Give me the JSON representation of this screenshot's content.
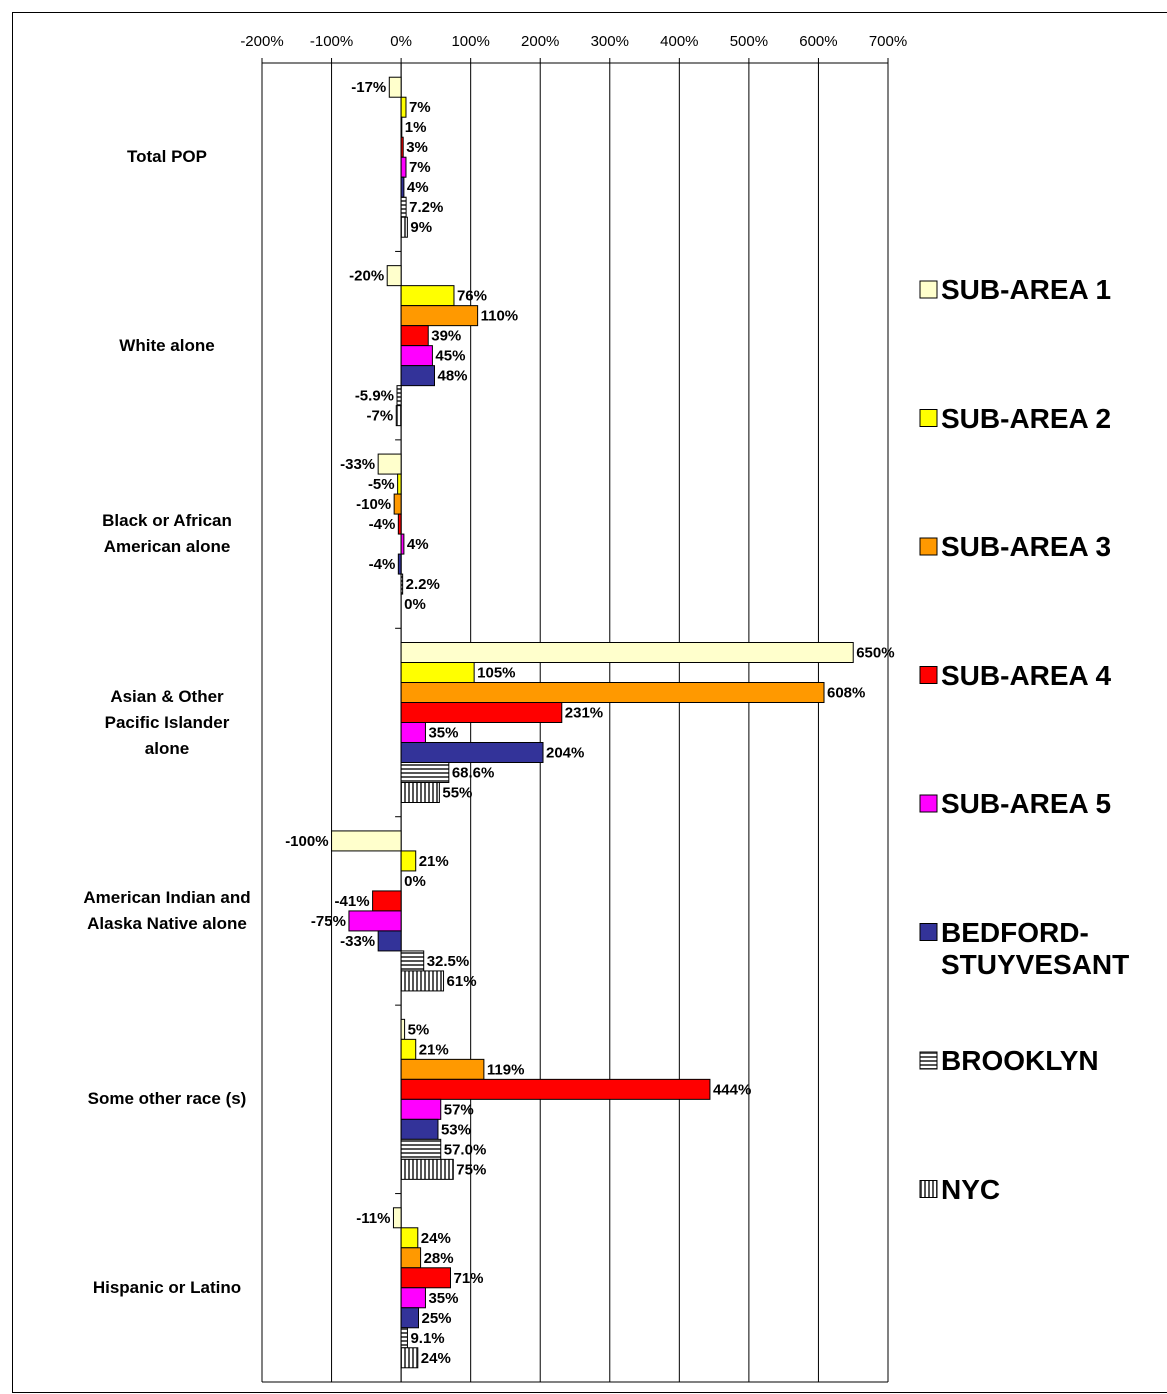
{
  "chart_data": {
    "type": "hbar",
    "categories": [
      "Total POP",
      "White alone",
      "Black or African\nAmerican alone",
      "Asian & Other\nPacific Islander\nalone",
      "American Indian and\nAlaska Native alone",
      "Some other race (s)",
      "Hispanic or Latino"
    ],
    "series": [
      {
        "name": "SUB-AREA 1",
        "color": "#ffffcc",
        "values": [
          -17,
          -20,
          -33,
          650,
          -100,
          5,
          -11
        ],
        "value_labels": [
          "-17%",
          "-20%",
          "-33%",
          "650%",
          "-100%",
          "5%",
          "-11%"
        ]
      },
      {
        "name": "SUB-AREA 2",
        "color": "#ffff00",
        "values": [
          7,
          76,
          -5,
          105,
          21,
          21,
          24
        ],
        "value_labels": [
          "7%",
          "76%",
          "-5%",
          "105%",
          "21%",
          "21%",
          "24%"
        ]
      },
      {
        "name": "SUB-AREA 3",
        "color": "#ff9900",
        "values": [
          1,
          110,
          -10,
          608,
          0,
          119,
          28
        ],
        "value_labels": [
          "1%",
          "110%",
          "-10%",
          "608%",
          "0%",
          "119%",
          "28%"
        ]
      },
      {
        "name": "SUB-AREA 4",
        "color": "#ff0000",
        "values": [
          3,
          39,
          -4,
          231,
          -41,
          444,
          71
        ],
        "value_labels": [
          "3%",
          "39%",
          "-4%",
          "231%",
          "-41%",
          "444%",
          "71%"
        ]
      },
      {
        "name": "SUB-AREA 5",
        "color": "#ff00ff",
        "values": [
          7,
          45,
          4,
          35,
          -75,
          57,
          35
        ],
        "value_labels": [
          "7%",
          "45%",
          "4%",
          "35%",
          "-75%",
          "57%",
          "35%"
        ]
      },
      {
        "name": "BEDFORD-STUYVESANT",
        "color": "#333399",
        "values": [
          4,
          48,
          -4,
          204,
          -33,
          53,
          25
        ],
        "value_labels": [
          "4%",
          "48%",
          "-4%",
          "204%",
          "-33%",
          "53%",
          "25%"
        ]
      },
      {
        "name": "BROOKLYN",
        "color": "#555555",
        "pattern": "horizontal",
        "values": [
          7.2,
          -5.9,
          2.2,
          68.6,
          32.5,
          57.0,
          9.1
        ],
        "value_labels": [
          "7.2%",
          "-5.9%",
          "2.2%",
          "68.6%",
          "32.5%",
          "57.0%",
          "9.1%"
        ]
      },
      {
        "name": "NYC",
        "color": "#555555",
        "pattern": "vertical",
        "values": [
          9,
          -7,
          0,
          55,
          61,
          75,
          24
        ],
        "value_labels": [
          "9%",
          "-7%",
          "0%",
          "55%",
          "61%",
          "75%",
          "24%"
        ]
      }
    ],
    "xlim": [
      -200,
      700
    ],
    "xticks": [
      {
        "value": -200,
        "label": "-200%"
      },
      {
        "value": -100,
        "label": "-100%"
      },
      {
        "value": 0,
        "label": "0%"
      },
      {
        "value": 100,
        "label": "100%"
      },
      {
        "value": 200,
        "label": "200%"
      },
      {
        "value": 300,
        "label": "300%"
      },
      {
        "value": 400,
        "label": "400%"
      },
      {
        "value": 500,
        "label": "500%"
      },
      {
        "value": 600,
        "label": "600%"
      },
      {
        "value": 700,
        "label": "700%"
      }
    ],
    "grid": true,
    "legend": "right"
  }
}
